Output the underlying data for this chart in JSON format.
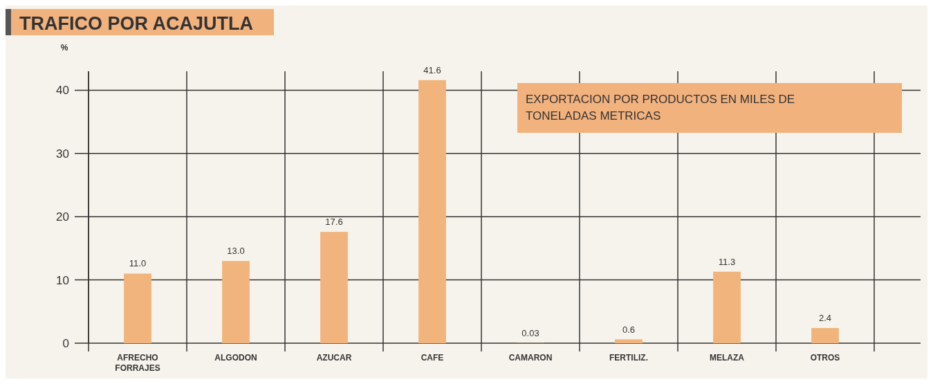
{
  "chart_data": {
    "type": "bar",
    "title": "TRAFICO POR ACAJUTLA",
    "subtitle": "EXPORTACION POR PRODUCTOS EN MILES DE TONELADAS METRICAS",
    "ylabel": "%",
    "categories": [
      "AFRECHO\nFORRAJES",
      "ALGODON",
      "AZUCAR",
      "CAFE",
      "CAMARON",
      "FERTILIZ.",
      "MELAZA",
      "OTROS"
    ],
    "values": [
      11.0,
      13.0,
      17.6,
      41.6,
      0.03,
      0.6,
      11.3,
      2.4
    ],
    "value_labels": [
      "11.0",
      "13.0",
      "17.6",
      "41.6",
      "0.03",
      "0.6",
      "11.3",
      "2.4"
    ],
    "color": "#f0b47c",
    "ylim": [
      0,
      43
    ],
    "yticks": [
      0,
      10,
      20,
      30,
      40
    ],
    "grid": true
  }
}
